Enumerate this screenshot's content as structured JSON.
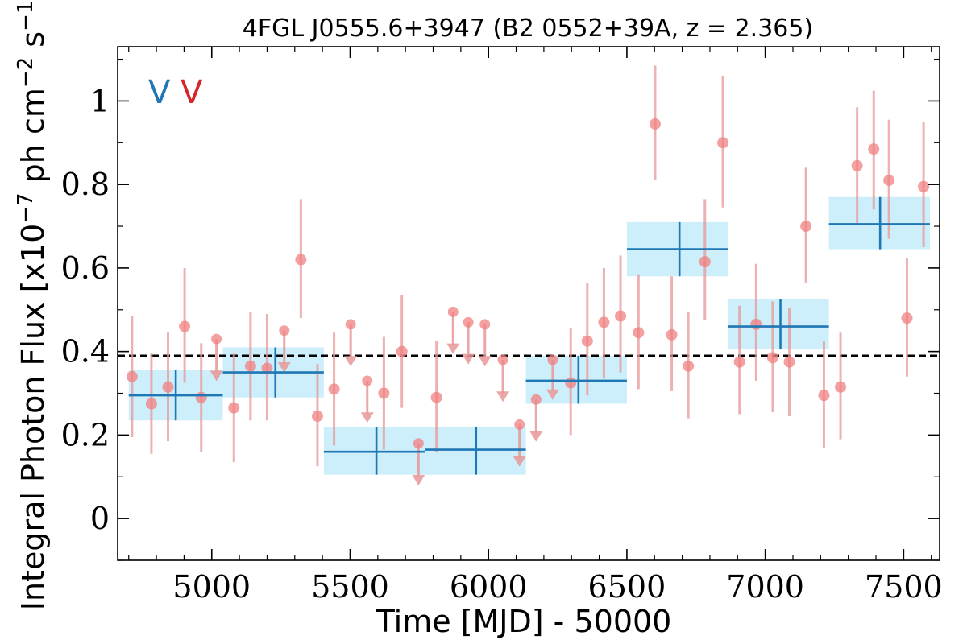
{
  "chart_data": {
    "type": "scatter",
    "title": "4FGL J0555.6+3947 (B2 0552+39A, z = 2.365)",
    "xlabel": "Time [MJD] - 50000",
    "ylabel": "Integral Photon Flux [x10^-7 ph cm^-2 s^-1]",
    "xlim": [
      4660,
      7630
    ],
    "ylim": [
      -0.1,
      1.13
    ],
    "xticks": [
      5000,
      5500,
      6000,
      6500,
      7000,
      7500
    ],
    "xtick_labels": [
      "5000",
      "5500",
      "6000",
      "6500",
      "7000",
      "7500"
    ],
    "yticks": [
      0,
      0.2,
      0.4,
      0.6,
      0.8,
      1.0
    ],
    "ytick_labels": [
      "0",
      "0.2",
      "0.4",
      "0.6",
      "0.8",
      "1"
    ],
    "mean_flux": 0.39,
    "legend": [
      {
        "label": "V",
        "color": "#1f77b4"
      },
      {
        "label": "V",
        "color": "#d62728"
      }
    ],
    "colors": {
      "bins_fill": "#cdeefb",
      "bins_line": "#1f77b4",
      "points": "#f08080",
      "errorbars": "#e89898",
      "mean_line": "#000000"
    },
    "series": [
      {
        "kind": "binned",
        "points": [
          {
            "x0": 4700,
            "x1": 5040,
            "xc": 4870,
            "y": 0.295,
            "ylo": 0.235,
            "yhi": 0.355
          },
          {
            "x0": 5040,
            "x1": 5405,
            "xc": 5230,
            "y": 0.35,
            "ylo": 0.29,
            "yhi": 0.41
          },
          {
            "x0": 5405,
            "x1": 5770,
            "xc": 5595,
            "y": 0.16,
            "ylo": 0.105,
            "yhi": 0.22
          },
          {
            "x0": 5770,
            "x1": 6135,
            "xc": 5955,
            "y": 0.165,
            "ylo": 0.105,
            "yhi": 0.22
          },
          {
            "x0": 6135,
            "x1": 6500,
            "xc": 6325,
            "y": 0.33,
            "ylo": 0.275,
            "yhi": 0.39
          },
          {
            "x0": 6500,
            "x1": 6865,
            "xc": 6690,
            "y": 0.645,
            "ylo": 0.58,
            "yhi": 0.71
          },
          {
            "x0": 6865,
            "x1": 7230,
            "xc": 7055,
            "y": 0.46,
            "ylo": 0.405,
            "yhi": 0.525
          },
          {
            "x0": 7230,
            "x1": 7595,
            "xc": 7415,
            "y": 0.705,
            "ylo": 0.645,
            "yhi": 0.77
          }
        ]
      },
      {
        "kind": "monthly",
        "points": [
          {
            "x": 4712,
            "y": 0.34,
            "ylo": 0.195,
            "yhi": 0.485
          },
          {
            "x": 4782,
            "y": 0.275,
            "ylo": 0.155,
            "yhi": 0.395
          },
          {
            "x": 4842,
            "y": 0.315,
            "ylo": 0.185,
            "yhi": 0.445
          },
          {
            "x": 4902,
            "y": 0.46,
            "ylo": 0.325,
            "yhi": 0.6
          },
          {
            "x": 4962,
            "y": 0.29,
            "ylo": 0.16,
            "yhi": 0.42
          },
          {
            "x": 5017,
            "y": 0.43,
            "ul": true,
            "arrow_to": 0.335
          },
          {
            "x": 5080,
            "y": 0.265,
            "ylo": 0.135,
            "yhi": 0.395
          },
          {
            "x": 5140,
            "y": 0.365,
            "ylo": 0.235,
            "yhi": 0.495
          },
          {
            "x": 5200,
            "y": 0.36,
            "ylo": 0.235,
            "yhi": 0.49
          },
          {
            "x": 5262,
            "y": 0.45,
            "ul": true,
            "arrow_to": 0.355
          },
          {
            "x": 5322,
            "y": 0.62,
            "ylo": 0.48,
            "yhi": 0.765
          },
          {
            "x": 5382,
            "y": 0.245,
            "ylo": 0.125,
            "yhi": 0.37
          },
          {
            "x": 5442,
            "y": 0.31,
            "ylo": 0.175,
            "yhi": 0.445
          },
          {
            "x": 5502,
            "y": 0.465,
            "ul": true,
            "arrow_to": 0.37
          },
          {
            "x": 5562,
            "y": 0.33,
            "ul": true,
            "arrow_to": 0.235
          },
          {
            "x": 5622,
            "y": 0.3,
            "ylo": 0.165,
            "yhi": 0.435
          },
          {
            "x": 5687,
            "y": 0.4,
            "ylo": 0.265,
            "yhi": 0.535
          },
          {
            "x": 5747,
            "y": 0.18,
            "ul": true,
            "arrow_to": 0.085
          },
          {
            "x": 5812,
            "y": 0.29,
            "ylo": 0.16,
            "yhi": 0.425
          },
          {
            "x": 5872,
            "y": 0.495,
            "ul": true,
            "arrow_to": 0.4
          },
          {
            "x": 5927,
            "y": 0.47,
            "ul": true,
            "arrow_to": 0.375
          },
          {
            "x": 5987,
            "y": 0.465,
            "ul": true,
            "arrow_to": 0.37
          },
          {
            "x": 6052,
            "y": 0.38,
            "ul": true,
            "arrow_to": 0.285
          },
          {
            "x": 6112,
            "y": 0.225,
            "ul": true,
            "arrow_to": 0.13
          },
          {
            "x": 6172,
            "y": 0.285,
            "ul": true,
            "arrow_to": 0.19
          },
          {
            "x": 6232,
            "y": 0.38,
            "ul": true,
            "arrow_to": 0.29
          },
          {
            "x": 6297,
            "y": 0.325,
            "ylo": 0.2,
            "yhi": 0.455
          },
          {
            "x": 6357,
            "y": 0.425,
            "ylo": 0.295,
            "yhi": 0.565
          },
          {
            "x": 6417,
            "y": 0.47,
            "ylo": 0.335,
            "yhi": 0.6
          },
          {
            "x": 6477,
            "y": 0.485,
            "ylo": 0.35,
            "yhi": 0.63
          },
          {
            "x": 6542,
            "y": 0.445,
            "ylo": 0.31,
            "yhi": 0.585
          },
          {
            "x": 6602,
            "y": 0.945,
            "ylo": 0.81,
            "yhi": 1.085
          },
          {
            "x": 6662,
            "y": 0.44,
            "ylo": 0.305,
            "yhi": 0.58
          },
          {
            "x": 6722,
            "y": 0.365,
            "ylo": 0.24,
            "yhi": 0.495
          },
          {
            "x": 6782,
            "y": 0.615,
            "ylo": 0.475,
            "yhi": 0.765
          },
          {
            "x": 6847,
            "y": 0.9,
            "ylo": 0.745,
            "yhi": 1.06
          },
          {
            "x": 6907,
            "y": 0.375,
            "ylo": 0.25,
            "yhi": 0.51
          },
          {
            "x": 6967,
            "y": 0.465,
            "ylo": 0.33,
            "yhi": 0.61
          },
          {
            "x": 7027,
            "y": 0.385,
            "ylo": 0.255,
            "yhi": 0.52
          },
          {
            "x": 7087,
            "y": 0.375,
            "ylo": 0.245,
            "yhi": 0.505
          },
          {
            "x": 7147,
            "y": 0.7,
            "ylo": 0.565,
            "yhi": 0.84
          },
          {
            "x": 7212,
            "y": 0.295,
            "ylo": 0.17,
            "yhi": 0.425
          },
          {
            "x": 7272,
            "y": 0.315,
            "ylo": 0.19,
            "yhi": 0.445
          },
          {
            "x": 7332,
            "y": 0.845,
            "ylo": 0.705,
            "yhi": 0.985
          },
          {
            "x": 7392,
            "y": 0.885,
            "ylo": 0.74,
            "yhi": 1.025
          },
          {
            "x": 7447,
            "y": 0.81,
            "ylo": 0.67,
            "yhi": 0.955
          },
          {
            "x": 7512,
            "y": 0.48,
            "ylo": 0.34,
            "yhi": 0.625
          },
          {
            "x": 7572,
            "y": 0.795,
            "ylo": 0.65,
            "yhi": 0.95
          }
        ]
      }
    ]
  }
}
